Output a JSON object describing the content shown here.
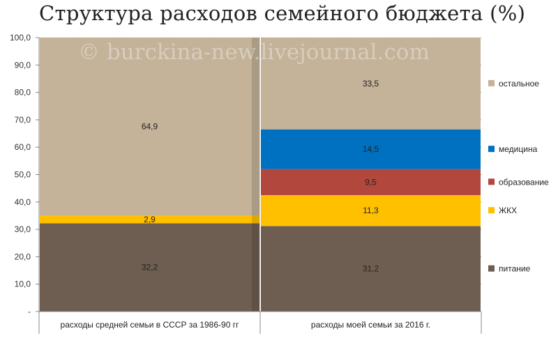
{
  "chart_data": {
    "type": "bar",
    "stacked": true,
    "title": "Структура расходов семейного бюджета (%)",
    "watermark": "© burckina-new.livejournal.com",
    "categories": [
      "расходы средней семьи в СССР за 1986-90 гг",
      "расходы моей семьи за 2016 г."
    ],
    "y_ticks": [
      "-",
      "10,0",
      "20,0",
      "30,0",
      "40,0",
      "50,0",
      "60,0",
      "70,0",
      "80,0",
      "90,0",
      "100,0"
    ],
    "ylim": [
      0,
      100
    ],
    "grid": true,
    "legend_position": "right",
    "series": [
      {
        "name": "питание",
        "values": [
          32.2,
          31.2
        ],
        "labels": [
          "32,2",
          "31,2"
        ],
        "color": "#6e5e51"
      },
      {
        "name": "ЖКХ",
        "values": [
          2.9,
          11.3
        ],
        "labels": [
          "2,9",
          "11,3"
        ],
        "color": "#ffc000"
      },
      {
        "name": "образование",
        "values": [
          0,
          9.5
        ],
        "labels": [
          "",
          "9,5"
        ],
        "color": "#b2473d"
      },
      {
        "name": "медицина",
        "values": [
          0,
          14.5
        ],
        "labels": [
          "",
          "14,5"
        ],
        "color": "#0070c0"
      },
      {
        "name": "остальное",
        "values": [
          64.9,
          33.5
        ],
        "labels": [
          "64,9",
          "33,5"
        ],
        "color": "#c4b299"
      }
    ]
  }
}
